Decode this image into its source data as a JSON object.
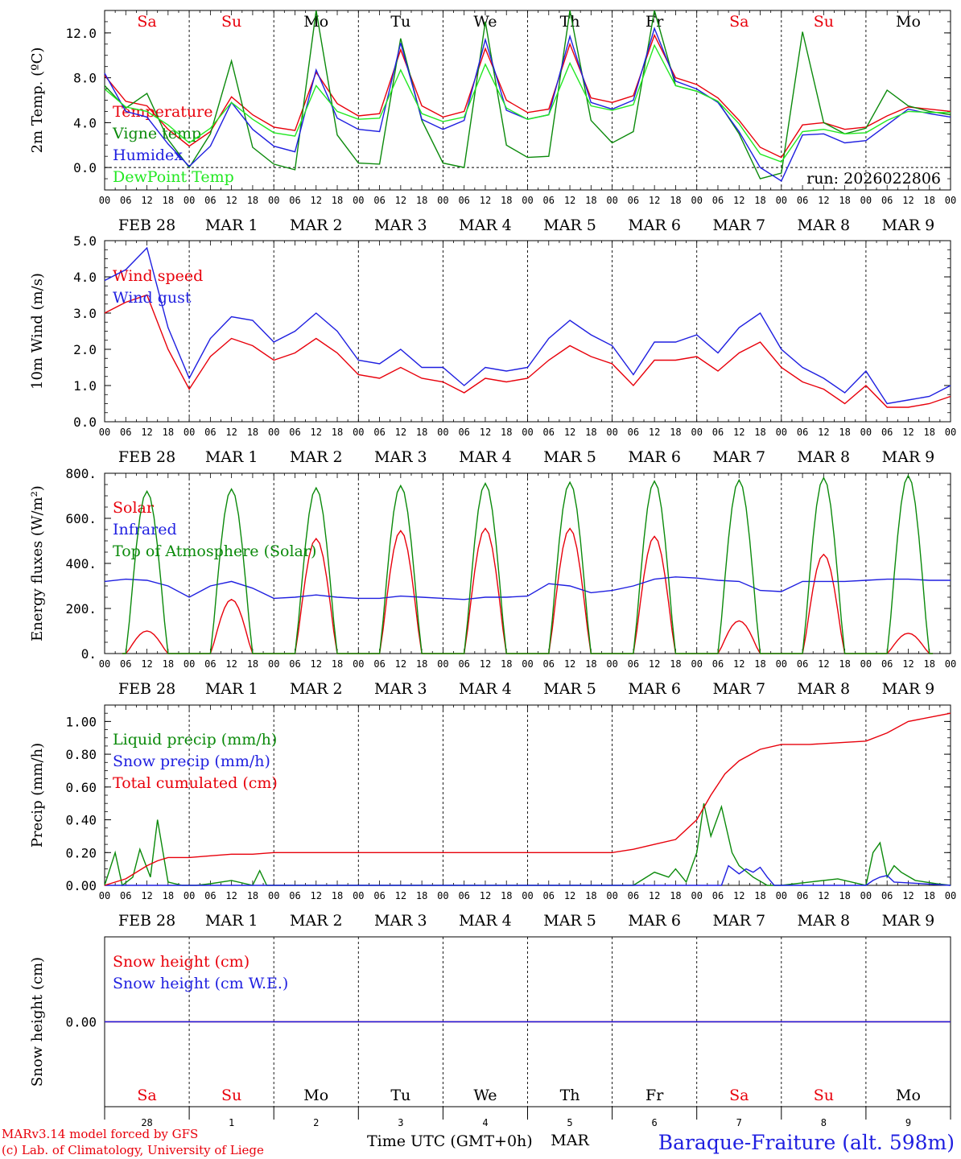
{
  "colors": {
    "red": "#e8000b",
    "green": "#0b8a0b",
    "blue": "#1f1fe0",
    "light_green": "#22e822",
    "weekend": "#e8000b",
    "weekday": "#000000"
  },
  "days_of_week": [
    {
      "label": "Sa",
      "weekend": true
    },
    {
      "label": "Su",
      "weekend": true
    },
    {
      "label": "Mo",
      "weekend": false
    },
    {
      "label": "Tu",
      "weekend": false
    },
    {
      "label": "We",
      "weekend": false
    },
    {
      "label": "Th",
      "weekend": false
    },
    {
      "label": "Fr",
      "weekend": false
    },
    {
      "label": "Sa",
      "weekend": true
    },
    {
      "label": "Su",
      "weekend": true
    },
    {
      "label": "Mo",
      "weekend": false
    }
  ],
  "date_labels": [
    "FEB 28",
    "MAR  1",
    "MAR  2",
    "MAR  3",
    "MAR  4",
    "MAR  5",
    "MAR  6",
    "MAR  7",
    "MAR  8",
    "MAR  9"
  ],
  "hour_ticks": [
    "00",
    "06",
    "12",
    "18"
  ],
  "bottom_day_numbers": [
    "28",
    "1",
    "2",
    "3",
    "4",
    "5",
    "6",
    "7",
    "8",
    "9"
  ],
  "bottom_mar_label": "MAR",
  "footer": {
    "model_line": "MARv3.14 model forced by GFS",
    "lab_line": "(c) Lab. of Climatology, University of Liege",
    "axis_title": "Time UTC (GMT+0h)",
    "station": "Baraque-Fraiture (alt. 598m)"
  },
  "chart_data": [
    {
      "id": "temperature",
      "type": "line",
      "ylabel": "2m Temp. (ºC)",
      "ylim": [
        -2.0,
        14.0
      ],
      "yticks": [
        0.0,
        4.0,
        8.0,
        12.0
      ],
      "ytick_labels": [
        "0.0",
        "4.0",
        "8.0",
        "12.0"
      ],
      "dashed_zero": true,
      "x_unit": "hours since FEB 28 00 UTC",
      "annotation": "run: 2026022806",
      "series": [
        {
          "name": "Temperature",
          "color": "red",
          "x": [
            0,
            6,
            12,
            18,
            24,
            30,
            36,
            42,
            48,
            54,
            60,
            66,
            72,
            78,
            84,
            90,
            96,
            102,
            108,
            114,
            120,
            126,
            132,
            138,
            144,
            150,
            156,
            162,
            168,
            174,
            180,
            186,
            192,
            198,
            204,
            210,
            216,
            222,
            228,
            234,
            240
          ],
          "y": [
            8.2,
            5.9,
            5.5,
            3.4,
            1.9,
            3.2,
            6.3,
            4.7,
            3.6,
            3.3,
            8.5,
            5.7,
            4.6,
            4.8,
            10.5,
            5.5,
            4.5,
            5.0,
            10.6,
            6.0,
            4.9,
            5.2,
            11.0,
            6.2,
            5.8,
            6.4,
            11.8,
            8.0,
            7.4,
            6.2,
            4.2,
            1.8,
            0.9,
            3.8,
            4.0,
            3.4,
            3.6,
            4.6,
            5.4,
            5.2,
            5.0
          ]
        },
        {
          "name": "Vigne temp",
          "color": "green",
          "x": [
            0,
            6,
            12,
            18,
            24,
            30,
            36,
            42,
            48,
            54,
            60,
            66,
            72,
            78,
            84,
            90,
            96,
            102,
            108,
            114,
            120,
            126,
            132,
            138,
            144,
            150,
            156,
            162,
            168,
            174,
            180,
            186,
            192,
            198,
            204,
            210,
            216,
            222,
            228,
            234,
            240
          ],
          "y": [
            7.3,
            5.3,
            6.6,
            2.5,
            0.0,
            3.0,
            9.5,
            1.8,
            0.3,
            -0.2,
            14.3,
            2.9,
            0.4,
            0.3,
            11.5,
            4.2,
            0.4,
            0.0,
            13.0,
            2.0,
            0.9,
            1.0,
            14.5,
            4.2,
            2.2,
            3.2,
            14.0,
            7.3,
            6.8,
            5.9,
            3.0,
            -1.0,
            -0.5,
            12.1,
            4.0,
            3.0,
            3.5,
            6.9,
            5.5,
            5.0,
            4.7
          ]
        },
        {
          "name": "Humidex",
          "color": "blue",
          "x": [
            0,
            6,
            12,
            18,
            24,
            30,
            36,
            42,
            48,
            54,
            60,
            66,
            72,
            78,
            84,
            90,
            96,
            102,
            108,
            114,
            120,
            126,
            132,
            138,
            144,
            150,
            156,
            162,
            168,
            174,
            180,
            186,
            192,
            198,
            204,
            210,
            216,
            222,
            228,
            234,
            240
          ],
          "y": [
            8.4,
            5.0,
            4.5,
            2.1,
            0.1,
            1.9,
            5.8,
            3.4,
            1.9,
            1.4,
            8.7,
            4.4,
            3.4,
            3.2,
            11.1,
            4.3,
            3.4,
            4.2,
            11.4,
            5.1,
            4.3,
            4.7,
            11.7,
            5.8,
            5.2,
            6.0,
            12.4,
            7.7,
            7.0,
            5.8,
            3.2,
            0.0,
            -1.2,
            2.9,
            3.0,
            2.2,
            2.4,
            3.8,
            5.2,
            4.8,
            4.5
          ]
        },
        {
          "name": "DewPoint Temp",
          "color": "light_green",
          "x": [
            0,
            6,
            12,
            18,
            24,
            30,
            36,
            42,
            48,
            54,
            60,
            66,
            72,
            78,
            84,
            90,
            96,
            102,
            108,
            114,
            120,
            126,
            132,
            138,
            144,
            150,
            156,
            162,
            168,
            174,
            180,
            186,
            192,
            198,
            204,
            210,
            216,
            222,
            228,
            234,
            240
          ],
          "y": [
            7.0,
            5.4,
            5.0,
            3.8,
            2.2,
            3.5,
            5.8,
            4.3,
            3.1,
            2.8,
            7.3,
            5.0,
            4.3,
            4.4,
            8.7,
            4.8,
            4.1,
            4.5,
            9.2,
            5.3,
            4.3,
            4.7,
            9.3,
            5.5,
            5.1,
            5.6,
            10.9,
            7.3,
            6.8,
            5.9,
            3.9,
            1.2,
            0.5,
            3.2,
            3.4,
            3.0,
            3.1,
            4.2,
            5.0,
            4.9,
            4.9
          ]
        }
      ]
    },
    {
      "id": "wind",
      "type": "line",
      "ylabel": "10m Wind (m/s)",
      "ylim": [
        0.0,
        5.0
      ],
      "yticks": [
        0.0,
        1.0,
        2.0,
        3.0,
        4.0,
        5.0
      ],
      "ytick_labels": [
        "0.0",
        "1.0",
        "2.0",
        "3.0",
        "4.0",
        "5.0"
      ],
      "series": [
        {
          "name": "Wind speed",
          "color": "red",
          "x": [
            0,
            6,
            12,
            18,
            24,
            30,
            36,
            42,
            48,
            54,
            60,
            66,
            72,
            78,
            84,
            90,
            96,
            102,
            108,
            114,
            120,
            126,
            132,
            138,
            144,
            150,
            156,
            162,
            168,
            174,
            180,
            186,
            192,
            198,
            204,
            210,
            216,
            222,
            228,
            234,
            240
          ],
          "y": [
            3.0,
            3.3,
            3.5,
            2.0,
            0.9,
            1.8,
            2.3,
            2.1,
            1.7,
            1.9,
            2.3,
            1.9,
            1.3,
            1.2,
            1.5,
            1.2,
            1.1,
            0.8,
            1.2,
            1.1,
            1.2,
            1.7,
            2.1,
            1.8,
            1.6,
            1.0,
            1.7,
            1.7,
            1.8,
            1.4,
            1.9,
            2.2,
            1.5,
            1.1,
            0.9,
            0.5,
            1.0,
            0.4,
            0.4,
            0.5,
            0.7
          ]
        },
        {
          "name": "Wind gust",
          "color": "blue",
          "x": [
            0,
            6,
            12,
            18,
            24,
            30,
            36,
            42,
            48,
            54,
            60,
            66,
            72,
            78,
            84,
            90,
            96,
            102,
            108,
            114,
            120,
            126,
            132,
            138,
            144,
            150,
            156,
            162,
            168,
            174,
            180,
            186,
            192,
            198,
            204,
            210,
            216,
            222,
            228,
            234,
            240
          ],
          "y": [
            3.9,
            4.2,
            4.8,
            2.6,
            1.2,
            2.3,
            2.9,
            2.8,
            2.2,
            2.5,
            3.0,
            2.5,
            1.7,
            1.6,
            2.0,
            1.5,
            1.5,
            1.0,
            1.5,
            1.4,
            1.5,
            2.3,
            2.8,
            2.4,
            2.1,
            1.3,
            2.2,
            2.2,
            2.4,
            1.9,
            2.6,
            3.0,
            2.0,
            1.5,
            1.2,
            0.8,
            1.4,
            0.5,
            0.6,
            0.7,
            1.0
          ]
        }
      ]
    },
    {
      "id": "energy",
      "type": "line",
      "ylabel": "Energy fluxes (W/m²)",
      "ylim": [
        0,
        800
      ],
      "yticks": [
        0,
        200,
        400,
        600,
        800
      ],
      "ytick_labels": [
        "0.",
        "200.",
        "400.",
        "600.",
        "800."
      ],
      "series": [
        {
          "name": "Solar",
          "color": "red",
          "kind": "daily_peaks",
          "peaks": [
            100,
            240,
            510,
            545,
            555,
            555,
            520,
            145,
            440,
            90
          ]
        },
        {
          "name": "Infrared",
          "color": "blue",
          "x": [
            0,
            6,
            12,
            18,
            24,
            30,
            36,
            42,
            48,
            54,
            60,
            66,
            72,
            78,
            84,
            90,
            96,
            102,
            108,
            114,
            120,
            126,
            132,
            138,
            144,
            150,
            156,
            162,
            168,
            174,
            180,
            186,
            192,
            198,
            204,
            210,
            216,
            222,
            228,
            234,
            240
          ],
          "y": [
            320,
            330,
            325,
            300,
            250,
            300,
            320,
            290,
            245,
            250,
            260,
            250,
            245,
            245,
            255,
            250,
            245,
            240,
            250,
            250,
            255,
            310,
            300,
            270,
            280,
            300,
            330,
            340,
            335,
            325,
            320,
            280,
            275,
            320,
            320,
            320,
            325,
            330,
            330,
            325,
            325
          ]
        },
        {
          "name": "Top of Atmosphere (Solar)",
          "color": "green",
          "kind": "daily_peaks",
          "peaks": [
            720,
            730,
            735,
            745,
            755,
            760,
            765,
            770,
            780,
            790
          ]
        }
      ]
    },
    {
      "id": "precip",
      "type": "line",
      "ylabel": "Precip (mm/h)",
      "ylim": [
        0.0,
        1.1
      ],
      "yticks": [
        0.0,
        0.2,
        0.4,
        0.6,
        0.8,
        1.0
      ],
      "ytick_labels": [
        "0.00",
        "0.20",
        "0.40",
        "0.60",
        "0.80",
        "1.00"
      ],
      "series": [
        {
          "name": "Liquid precip (mm/h)",
          "color": "green",
          "x": [
            0,
            3,
            5,
            8,
            10,
            13,
            15,
            18,
            22,
            26,
            30,
            36,
            42,
            44,
            46,
            50,
            72,
            96,
            120,
            144,
            150,
            156,
            160,
            162,
            165,
            168,
            170,
            172,
            175,
            178,
            180,
            184,
            188,
            192,
            200,
            208,
            216,
            218,
            220,
            222,
            224,
            226,
            230,
            236,
            240
          ],
          "y": [
            0.0,
            0.2,
            0.0,
            0.05,
            0.22,
            0.05,
            0.4,
            0.02,
            0.0,
            0.0,
            0.01,
            0.03,
            0.0,
            0.09,
            0.0,
            0.0,
            0.0,
            0.0,
            0.0,
            0.0,
            0.0,
            0.08,
            0.05,
            0.1,
            0.02,
            0.2,
            0.5,
            0.3,
            0.48,
            0.2,
            0.12,
            0.05,
            0.0,
            0.0,
            0.02,
            0.04,
            0.0,
            0.2,
            0.26,
            0.05,
            0.12,
            0.08,
            0.03,
            0.01,
            0.0
          ]
        },
        {
          "name": "Snow precip (mm/h)",
          "color": "blue",
          "x": [
            0,
            96,
            168,
            175,
            177,
            180,
            182,
            184,
            186,
            188,
            190,
            200,
            216,
            218,
            220,
            222,
            224,
            240
          ],
          "y": [
            0.0,
            0.0,
            0.0,
            0.0,
            0.12,
            0.07,
            0.1,
            0.08,
            0.11,
            0.05,
            0.0,
            0.0,
            0.0,
            0.03,
            0.05,
            0.06,
            0.02,
            0.0
          ]
        },
        {
          "name": "Total cumulated (cm)",
          "color": "red",
          "x": [
            0,
            6,
            12,
            15,
            18,
            24,
            30,
            36,
            42,
            48,
            60,
            72,
            96,
            120,
            144,
            150,
            156,
            162,
            168,
            172,
            176,
            180,
            186,
            192,
            200,
            216,
            222,
            228,
            240
          ],
          "y": [
            0.0,
            0.04,
            0.12,
            0.15,
            0.17,
            0.17,
            0.18,
            0.19,
            0.19,
            0.2,
            0.2,
            0.2,
            0.2,
            0.2,
            0.2,
            0.22,
            0.25,
            0.28,
            0.4,
            0.55,
            0.68,
            0.76,
            0.83,
            0.86,
            0.86,
            0.88,
            0.93,
            1.0,
            1.05
          ]
        }
      ]
    },
    {
      "id": "snow",
      "type": "line",
      "ylabel": "Snow height (cm)",
      "ylim": [
        -1.0,
        1.0
      ],
      "yticks": [
        0.0
      ],
      "ytick_labels": [
        "0.00"
      ],
      "series": [
        {
          "name": "Snow height (cm)",
          "color": "red",
          "x": [
            0,
            240
          ],
          "y": [
            0.0,
            0.0
          ]
        },
        {
          "name": "Snow height (cm W.E.)",
          "color": "blue",
          "x": [
            0,
            240
          ],
          "y": [
            0.0,
            0.0
          ]
        }
      ]
    }
  ]
}
